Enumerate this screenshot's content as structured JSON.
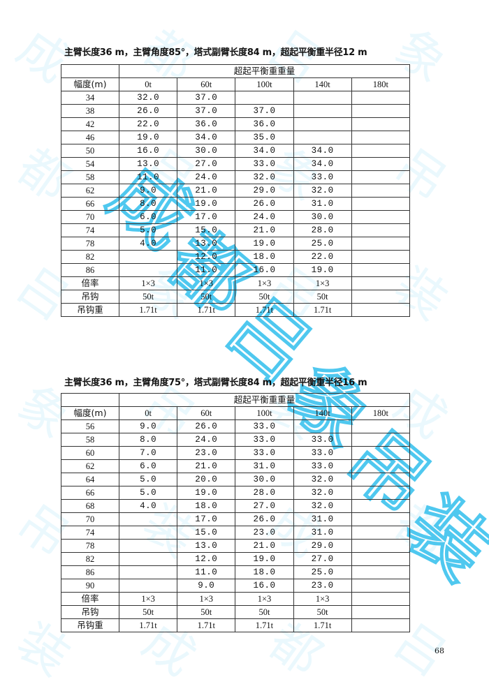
{
  "watermark": {
    "text": "成都吕象吊装",
    "color": "#4fc8ef"
  },
  "tables": [
    {
      "title": "主臂长度36 m，主臂角度85°，塔式副臂长度84 m，超起平衡重半径12 m",
      "group_header": "超起平衡重重量",
      "row_header": "幅度(m)",
      "columns": [
        "0t",
        "60t",
        "100t",
        "140t",
        "180t"
      ],
      "rows": [
        [
          "34",
          "32.0",
          "37.0",
          "",
          "",
          ""
        ],
        [
          "38",
          "26.0",
          "37.0",
          "37.0",
          "",
          ""
        ],
        [
          "42",
          "22.0",
          "36.0",
          "36.0",
          "",
          ""
        ],
        [
          "46",
          "19.0",
          "34.0",
          "35.0",
          "",
          ""
        ],
        [
          "50",
          "16.0",
          "30.0",
          "34.0",
          "34.0",
          ""
        ],
        [
          "54",
          "13.0",
          "27.0",
          "33.0",
          "34.0",
          ""
        ],
        [
          "58",
          "11.0",
          "24.0",
          "32.0",
          "33.0",
          ""
        ],
        [
          "62",
          "9.0",
          "21.0",
          "29.0",
          "32.0",
          ""
        ],
        [
          "66",
          "8.0",
          "19.0",
          "26.0",
          "31.0",
          ""
        ],
        [
          "70",
          "6.0",
          "17.0",
          "24.0",
          "30.0",
          ""
        ],
        [
          "74",
          "5.0",
          "15.0",
          "21.0",
          "28.0",
          ""
        ],
        [
          "78",
          "4.0",
          "13.0",
          "19.0",
          "25.0",
          ""
        ],
        [
          "82",
          "",
          "12.0",
          "18.0",
          "22.0",
          ""
        ],
        [
          "86",
          "",
          "11.0",
          "16.0",
          "19.0",
          ""
        ]
      ],
      "footer": [
        [
          "倍率",
          "1×3",
          "1×3",
          "1×3",
          "1×3",
          ""
        ],
        [
          "吊钩",
          "50t",
          "50t",
          "50t",
          "50t",
          ""
        ],
        [
          "吊钩重",
          "1.71t",
          "1.71t",
          "1.71t",
          "1.71t",
          ""
        ]
      ]
    },
    {
      "title": "主臂长度36 m，主臂角度75°，塔式副臂长度84 m，超起平衡重半径16 m",
      "group_header": "超起平衡重重量",
      "row_header": "幅度(m)",
      "columns": [
        "0t",
        "60t",
        "100t",
        "140t",
        "180t"
      ],
      "rows": [
        [
          "56",
          "9.0",
          "26.0",
          "33.0",
          "",
          ""
        ],
        [
          "58",
          "8.0",
          "24.0",
          "33.0",
          "33.0",
          ""
        ],
        [
          "60",
          "7.0",
          "23.0",
          "33.0",
          "33.0",
          ""
        ],
        [
          "62",
          "6.0",
          "21.0",
          "31.0",
          "33.0",
          ""
        ],
        [
          "64",
          "5.0",
          "20.0",
          "30.0",
          "32.0",
          ""
        ],
        [
          "66",
          "5.0",
          "19.0",
          "28.0",
          "32.0",
          ""
        ],
        [
          "68",
          "4.0",
          "18.0",
          "27.0",
          "32.0",
          ""
        ],
        [
          "70",
          "",
          "17.0",
          "26.0",
          "31.0",
          ""
        ],
        [
          "74",
          "",
          "15.0",
          "23.0",
          "31.0",
          ""
        ],
        [
          "78",
          "",
          "13.0",
          "21.0",
          "29.0",
          ""
        ],
        [
          "82",
          "",
          "12.0",
          "19.0",
          "27.0",
          ""
        ],
        [
          "86",
          "",
          "11.0",
          "18.0",
          "25.0",
          ""
        ],
        [
          "90",
          "",
          "9.0",
          "16.0",
          "23.0",
          ""
        ]
      ],
      "footer": [
        [
          "倍率",
          "1×3",
          "1×3",
          "1×3",
          "1×3",
          ""
        ],
        [
          "吊钩",
          "50t",
          "50t",
          "50t",
          "50t",
          ""
        ],
        [
          "吊钩重",
          "1.71t",
          "1.71t",
          "1.71t",
          "1.71t",
          ""
        ]
      ]
    }
  ],
  "page_number": "68"
}
